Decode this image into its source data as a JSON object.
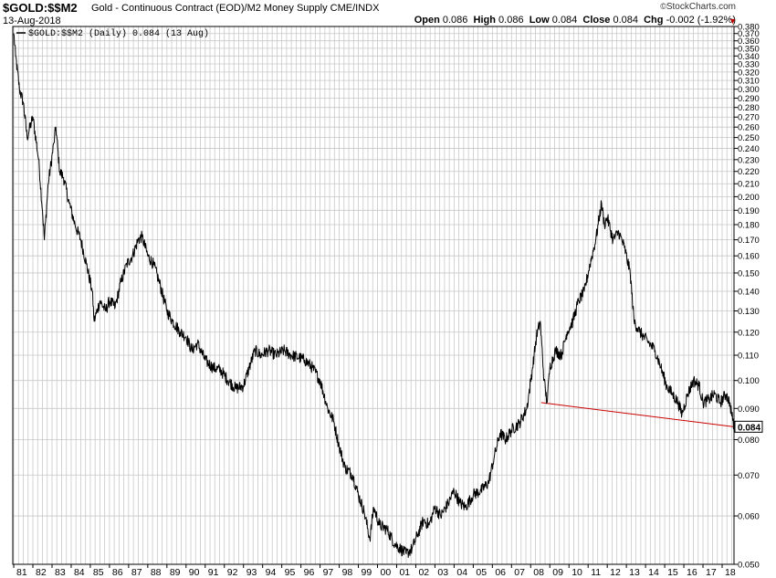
{
  "header": {
    "symbol": "$GOLD:$$M2",
    "description": "Gold - Continuous Contract (EOD)/M2 Money Supply",
    "exchange": "CME/INDX",
    "date": "13-Aug-2018",
    "brand": "StockCharts.com",
    "brand_copyright": "©",
    "quote": {
      "open_label": "Open",
      "open": "0.086",
      "high_label": "High",
      "high": "0.086",
      "low_label": "Low",
      "low": "0.084",
      "close_label": "Close",
      "close": "0.084",
      "chg_label": "Chg",
      "chg": "-0.002 (-1.92%)"
    }
  },
  "colors": {
    "price": "#000000",
    "trendline": "#cc0000",
    "grid": "#c8c8c8",
    "axis": "#000000",
    "down_arrow": "#c00000"
  },
  "chart_data": {
    "type": "line",
    "title": "$GOLD:$$M2 Gold - Continuous Contract (EOD)/M2 Money Supply CME/INDX",
    "legend": [
      "$GOLD:$$M2 (Daily) 0.084 (13 Aug)"
    ],
    "legend_placement": "top-left",
    "y_scale": "log",
    "ylim": [
      0.05,
      0.38
    ],
    "y_ticks": [
      0.05,
      0.06,
      0.07,
      0.08,
      0.09,
      0.1,
      0.11,
      0.12,
      0.13,
      0.14,
      0.15,
      0.16,
      0.17,
      0.18,
      0.19,
      0.2,
      0.21,
      0.22,
      0.23,
      0.24,
      0.25,
      0.26,
      0.27,
      0.28,
      0.29,
      0.3,
      0.31,
      0.32,
      0.33,
      0.34,
      0.35,
      0.36,
      0.37,
      0.38
    ],
    "y_tick_labels": [
      "0.050",
      "0.060",
      "0.070",
      "0.080",
      "0.090",
      "0.100",
      "0.110",
      "0.120",
      "0.130",
      "0.140",
      "0.150",
      "0.160",
      "0.170",
      "0.180",
      "0.190",
      "0.200",
      "0.210",
      "0.220",
      "0.230",
      "0.240",
      "0.250",
      "0.260",
      "0.270",
      "0.280",
      "0.290",
      "0.300",
      "0.310",
      "0.320",
      "0.330",
      "0.340",
      "0.350",
      "0.360",
      "0.370",
      "0.380"
    ],
    "x_tick_labels": [
      "81",
      "82",
      "83",
      "84",
      "85",
      "86",
      "87",
      "88",
      "89",
      "90",
      "91",
      "92",
      "93",
      "94",
      "95",
      "96",
      "97",
      "98",
      "99",
      "00",
      "01",
      "02",
      "03",
      "04",
      "05",
      "06",
      "07",
      "08",
      "09",
      "10",
      "11",
      "12",
      "13",
      "14",
      "15",
      "16",
      "17",
      "18"
    ],
    "xlim": [
      1980.95,
      2018.62
    ],
    "grid": true,
    "last_value_label": "0.084",
    "series": [
      {
        "name": "$GOLD:$$M2 (Daily) 0.084 (13 Aug)",
        "points": [
          [
            1981.0,
            0.37
          ],
          [
            1981.1,
            0.34
          ],
          [
            1981.3,
            0.3
          ],
          [
            1981.5,
            0.285
          ],
          [
            1981.7,
            0.25
          ],
          [
            1982.0,
            0.27
          ],
          [
            1982.3,
            0.23
          ],
          [
            1982.5,
            0.19
          ],
          [
            1982.6,
            0.17
          ],
          [
            1982.8,
            0.21
          ],
          [
            1983.1,
            0.245
          ],
          [
            1983.2,
            0.26
          ],
          [
            1983.4,
            0.22
          ],
          [
            1983.6,
            0.215
          ],
          [
            1983.9,
            0.195
          ],
          [
            1984.2,
            0.18
          ],
          [
            1984.5,
            0.17
          ],
          [
            1984.8,
            0.155
          ],
          [
            1985.1,
            0.14
          ],
          [
            1985.2,
            0.125
          ],
          [
            1985.5,
            0.135
          ],
          [
            1985.8,
            0.13
          ],
          [
            1986.0,
            0.135
          ],
          [
            1986.3,
            0.132
          ],
          [
            1986.6,
            0.145
          ],
          [
            1986.9,
            0.155
          ],
          [
            1987.2,
            0.16
          ],
          [
            1987.5,
            0.17
          ],
          [
            1987.7,
            0.172
          ],
          [
            1988.0,
            0.16
          ],
          [
            1988.3,
            0.155
          ],
          [
            1988.6,
            0.145
          ],
          [
            1989.0,
            0.13
          ],
          [
            1989.3,
            0.125
          ],
          [
            1989.7,
            0.12
          ],
          [
            1990.0,
            0.118
          ],
          [
            1990.3,
            0.112
          ],
          [
            1990.6,
            0.115
          ],
          [
            1991.0,
            0.108
          ],
          [
            1991.4,
            0.105
          ],
          [
            1991.8,
            0.104
          ],
          [
            1992.2,
            0.1
          ],
          [
            1992.6,
            0.097
          ],
          [
            1993.0,
            0.098
          ],
          [
            1993.3,
            0.105
          ],
          [
            1993.6,
            0.112
          ],
          [
            1993.9,
            0.11
          ],
          [
            1994.3,
            0.112
          ],
          [
            1994.7,
            0.11
          ],
          [
            1995.1,
            0.112
          ],
          [
            1995.5,
            0.11
          ],
          [
            1995.9,
            0.109
          ],
          [
            1996.2,
            0.108
          ],
          [
            1996.6,
            0.105
          ],
          [
            1997.0,
            0.1
          ],
          [
            1997.4,
            0.09
          ],
          [
            1997.7,
            0.086
          ],
          [
            1998.0,
            0.078
          ],
          [
            1998.3,
            0.072
          ],
          [
            1998.7,
            0.07
          ],
          [
            1999.0,
            0.065
          ],
          [
            1999.3,
            0.061
          ],
          [
            1999.6,
            0.055
          ],
          [
            1999.8,
            0.062
          ],
          [
            2000.1,
            0.058
          ],
          [
            2000.5,
            0.057
          ],
          [
            2000.9,
            0.054
          ],
          [
            2001.2,
            0.053
          ],
          [
            2001.5,
            0.052
          ],
          [
            2001.8,
            0.053
          ],
          [
            2002.1,
            0.056
          ],
          [
            2002.4,
            0.059
          ],
          [
            2002.7,
            0.058
          ],
          [
            2003.0,
            0.062
          ],
          [
            2003.3,
            0.06
          ],
          [
            2003.7,
            0.063
          ],
          [
            2004.0,
            0.066
          ],
          [
            2004.3,
            0.063
          ],
          [
            2004.6,
            0.062
          ],
          [
            2005.0,
            0.065
          ],
          [
            2005.4,
            0.066
          ],
          [
            2005.8,
            0.068
          ],
          [
            2006.1,
            0.075
          ],
          [
            2006.4,
            0.082
          ],
          [
            2006.7,
            0.08
          ],
          [
            2007.0,
            0.083
          ],
          [
            2007.4,
            0.085
          ],
          [
            2007.8,
            0.09
          ],
          [
            2008.1,
            0.105
          ],
          [
            2008.3,
            0.118
          ],
          [
            2008.5,
            0.125
          ],
          [
            2008.7,
            0.1
          ],
          [
            2008.85,
            0.092
          ],
          [
            2009.0,
            0.105
          ],
          [
            2009.3,
            0.112
          ],
          [
            2009.6,
            0.11
          ],
          [
            2009.9,
            0.12
          ],
          [
            2010.2,
            0.125
          ],
          [
            2010.5,
            0.135
          ],
          [
            2010.8,
            0.14
          ],
          [
            2011.1,
            0.155
          ],
          [
            2011.4,
            0.17
          ],
          [
            2011.7,
            0.195
          ],
          [
            2011.85,
            0.18
          ],
          [
            2012.0,
            0.185
          ],
          [
            2012.3,
            0.17
          ],
          [
            2012.6,
            0.175
          ],
          [
            2012.9,
            0.165
          ],
          [
            2013.2,
            0.15
          ],
          [
            2013.4,
            0.125
          ],
          [
            2013.7,
            0.12
          ],
          [
            2013.9,
            0.118
          ],
          [
            2014.2,
            0.115
          ],
          [
            2014.5,
            0.112
          ],
          [
            2014.8,
            0.105
          ],
          [
            2015.1,
            0.098
          ],
          [
            2015.4,
            0.095
          ],
          [
            2015.7,
            0.092
          ],
          [
            2015.9,
            0.088
          ],
          [
            2016.2,
            0.095
          ],
          [
            2016.5,
            0.1
          ],
          [
            2016.8,
            0.098
          ],
          [
            2017.0,
            0.092
          ],
          [
            2017.3,
            0.093
          ],
          [
            2017.6,
            0.095
          ],
          [
            2017.9,
            0.092
          ],
          [
            2018.2,
            0.095
          ],
          [
            2018.4,
            0.092
          ],
          [
            2018.55,
            0.086
          ],
          [
            2018.61,
            0.084
          ]
        ]
      }
    ],
    "trendline": {
      "points": [
        [
          2008.55,
          0.092
        ],
        [
          2018.61,
          0.084
        ]
      ]
    }
  }
}
